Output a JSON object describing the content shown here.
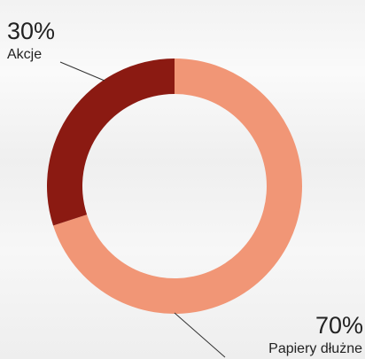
{
  "chart_data": {
    "type": "pie",
    "donut": true,
    "slices": [
      {
        "name": "Papiery dłużne",
        "value": 70,
        "label": "70%",
        "color": "#f19676"
      },
      {
        "name": "Akcje",
        "value": 30,
        "label": "30%",
        "color": "#8b1a12"
      }
    ],
    "title": "",
    "legend": "none (labels placed beside chart with leader lines)"
  }
}
